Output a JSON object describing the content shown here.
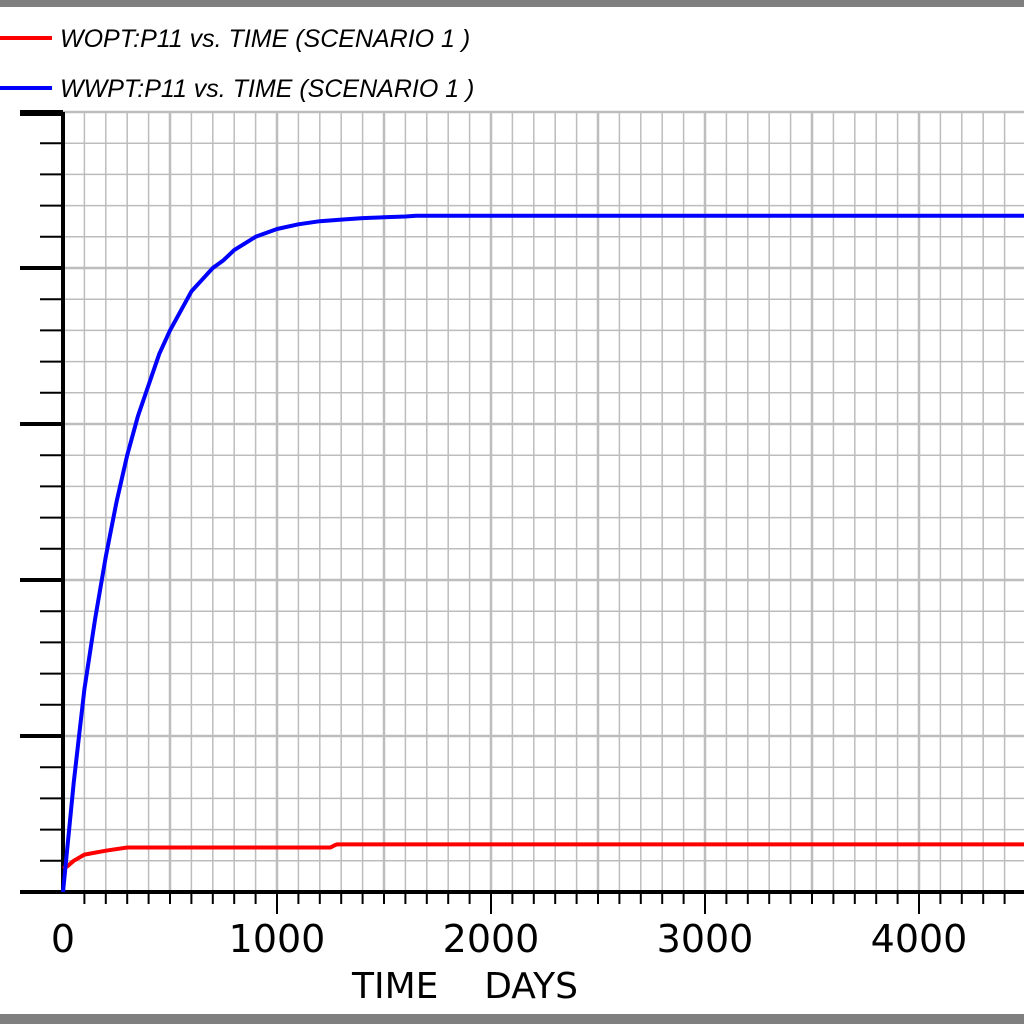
{
  "colors": {
    "wopt": "#ff0000",
    "wwpt": "#0000ff",
    "grid": "#bdbdbd",
    "frame": "#7f7f7f"
  },
  "chart_data": {
    "type": "line",
    "title": "",
    "xlabel": "TIME    DAYS",
    "ylabel": "",
    "xlim": [
      0,
      4500
    ],
    "ylim": [
      0,
      1
    ],
    "x_ticks": [
      0,
      1000,
      2000,
      3000,
      4000
    ],
    "x_tick_labels": [
      "0",
      "1000",
      "2000",
      "3000",
      "4000"
    ],
    "grid": true,
    "legend_position": "top-left",
    "series": [
      {
        "name": "WOPT:P11  vs.  TIME (SCENARIO 1 )",
        "color": "#ff0000",
        "x": [
          0,
          20,
          50,
          100,
          200,
          300,
          600,
          1000,
          1250,
          1270,
          1280,
          1600,
          2000,
          3000,
          4500
        ],
        "y": [
          0.03,
          0.033,
          0.04,
          0.048,
          0.053,
          0.057,
          0.057,
          0.057,
          0.057,
          0.06,
          0.061,
          0.061,
          0.061,
          0.061,
          0.061
        ]
      },
      {
        "name": "WWPT:P11  vs.  TIME (SCENARIO 1 )",
        "color": "#0000ff",
        "x": [
          0,
          50,
          100,
          150,
          200,
          250,
          300,
          350,
          400,
          450,
          500,
          550,
          600,
          650,
          700,
          750,
          800,
          900,
          1000,
          1100,
          1200,
          1300,
          1400,
          1500,
          1600,
          1650,
          2000,
          3000,
          4500
        ],
        "y": [
          0,
          0.14,
          0.26,
          0.35,
          0.43,
          0.5,
          0.56,
          0.61,
          0.65,
          0.69,
          0.72,
          0.745,
          0.77,
          0.785,
          0.8,
          0.81,
          0.823,
          0.84,
          0.85,
          0.856,
          0.86,
          0.862,
          0.864,
          0.865,
          0.866,
          0.867,
          0.867,
          0.867,
          0.867
        ]
      }
    ]
  }
}
